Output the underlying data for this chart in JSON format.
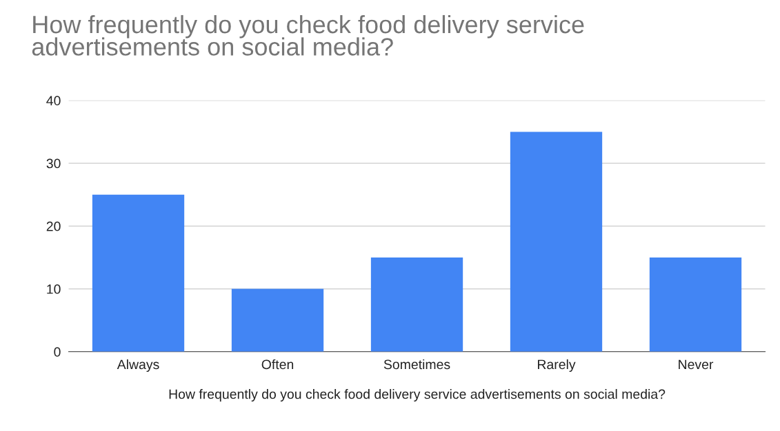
{
  "chart_data": {
    "type": "bar",
    "title": "How frequently do you check food delivery service\nadvertisements on social media?",
    "xlabel": "How frequently do you check food delivery service advertisements on social media?",
    "categories": [
      "Always",
      "Often",
      "Sometimes",
      "Rarely",
      "Never"
    ],
    "values": [
      25,
      10,
      15,
      35,
      15
    ],
    "color": "#4285f4",
    "ylim": [
      0,
      40
    ],
    "yticks": [
      0,
      10,
      20,
      30,
      40
    ],
    "grid": "y",
    "legend": false
  }
}
